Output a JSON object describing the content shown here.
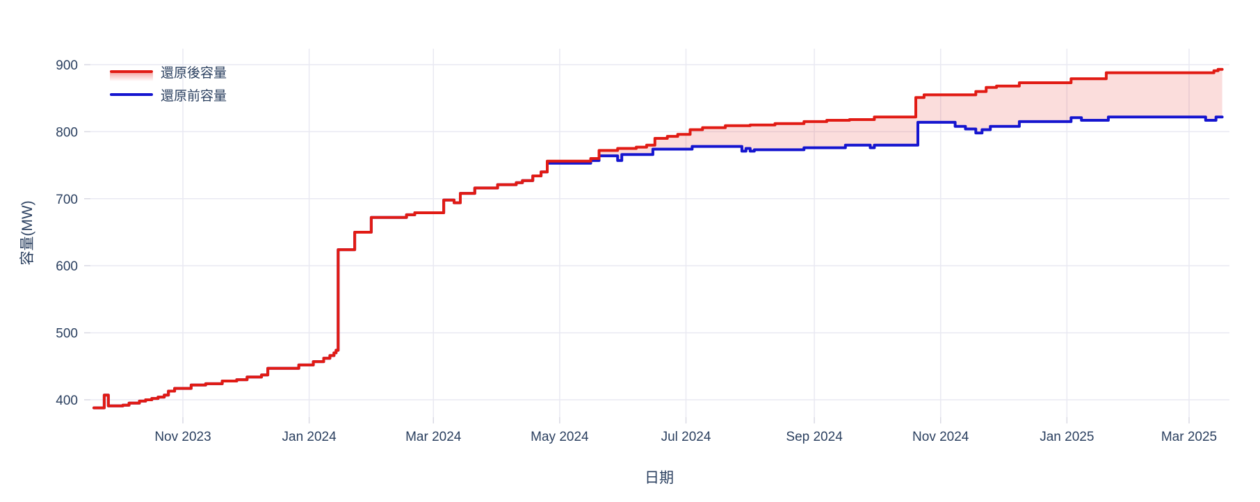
{
  "chart_data": {
    "type": "line",
    "title": "",
    "xlabel": "日期",
    "ylabel": "容量(MW)",
    "grid": true,
    "legend_position": "top-left",
    "line_interpolation": "step-after",
    "background_color": "#ffffff",
    "grid_color": "#e9e9f2",
    "tick_color": "#d9d9e3",
    "text_color": "#2a3f5f",
    "ylim": [
      374,
      924
    ],
    "xlim": [
      "2023-09-16",
      "2025-03-20"
    ],
    "y_ticks": [
      400,
      500,
      600,
      700,
      800,
      900
    ],
    "x_ticks": [
      {
        "date": "2023-11-01",
        "label": "Nov 2023"
      },
      {
        "date": "2024-01-01",
        "label": "Jan 2024"
      },
      {
        "date": "2024-03-01",
        "label": "Mar 2024"
      },
      {
        "date": "2024-05-01",
        "label": "May 2024"
      },
      {
        "date": "2024-07-01",
        "label": "Jul 2024"
      },
      {
        "date": "2024-09-01",
        "label": "Sep 2024"
      },
      {
        "date": "2024-11-01",
        "label": "Nov 2024"
      },
      {
        "date": "2025-01-01",
        "label": "Jan 2025"
      },
      {
        "date": "2025-03-01",
        "label": "Mar 2025"
      }
    ],
    "series": [
      {
        "name": "還原後容量",
        "color": "#e11b14",
        "fill": "tonexty",
        "fill_color": "rgba(225,27,20,0.15)",
        "points": [
          [
            "2023-09-19",
            388
          ],
          [
            "2023-09-23",
            388
          ],
          [
            "2023-09-24",
            407
          ],
          [
            "2023-09-26",
            391
          ],
          [
            "2023-10-03",
            392
          ],
          [
            "2023-10-06",
            395
          ],
          [
            "2023-10-11",
            398
          ],
          [
            "2023-10-14",
            400
          ],
          [
            "2023-10-17",
            402
          ],
          [
            "2023-10-20",
            404
          ],
          [
            "2023-10-23",
            407
          ],
          [
            "2023-10-25",
            413
          ],
          [
            "2023-10-28",
            417
          ],
          [
            "2023-11-05",
            422
          ],
          [
            "2023-11-12",
            424
          ],
          [
            "2023-11-20",
            428
          ],
          [
            "2023-11-27",
            430
          ],
          [
            "2023-12-02",
            434
          ],
          [
            "2023-12-09",
            437
          ],
          [
            "2023-12-12",
            447
          ],
          [
            "2023-12-27",
            452
          ],
          [
            "2024-01-03",
            457
          ],
          [
            "2024-01-08",
            462
          ],
          [
            "2024-01-11",
            466
          ],
          [
            "2024-01-13",
            470
          ],
          [
            "2024-01-14",
            474
          ],
          [
            "2024-01-15",
            624
          ],
          [
            "2024-01-23",
            650
          ],
          [
            "2024-01-31",
            672
          ],
          [
            "2024-02-17",
            676
          ],
          [
            "2024-02-21",
            679
          ],
          [
            "2024-03-06",
            698
          ],
          [
            "2024-03-11",
            694
          ],
          [
            "2024-03-14",
            708
          ],
          [
            "2024-03-21",
            716
          ],
          [
            "2024-04-01",
            721
          ],
          [
            "2024-04-10",
            724
          ],
          [
            "2024-04-13",
            727
          ],
          [
            "2024-04-18",
            734
          ],
          [
            "2024-04-22",
            740
          ],
          [
            "2024-04-25",
            756
          ],
          [
            "2024-05-16",
            760
          ],
          [
            "2024-05-20",
            772
          ],
          [
            "2024-05-29",
            775
          ],
          [
            "2024-06-07",
            777
          ],
          [
            "2024-06-12",
            780
          ],
          [
            "2024-06-16",
            790
          ],
          [
            "2024-06-22",
            793
          ],
          [
            "2024-06-27",
            796
          ],
          [
            "2024-07-03",
            803
          ],
          [
            "2024-07-09",
            806
          ],
          [
            "2024-07-20",
            809
          ],
          [
            "2024-08-01",
            810
          ],
          [
            "2024-08-13",
            812
          ],
          [
            "2024-08-27",
            815
          ],
          [
            "2024-09-07",
            817
          ],
          [
            "2024-09-18",
            818
          ],
          [
            "2024-09-30",
            822
          ],
          [
            "2024-10-20",
            851
          ],
          [
            "2024-10-24",
            855
          ],
          [
            "2024-11-18",
            860
          ],
          [
            "2024-11-23",
            866
          ],
          [
            "2024-11-28",
            868
          ],
          [
            "2024-12-09",
            873
          ],
          [
            "2025-01-03",
            879
          ],
          [
            "2025-01-20",
            888
          ],
          [
            "2025-03-13",
            891
          ],
          [
            "2025-03-15",
            893
          ],
          [
            "2025-03-17",
            893
          ]
        ]
      },
      {
        "name": "還原前容量",
        "color": "#1515cf",
        "fill": "none",
        "points": [
          [
            "2023-09-19",
            388
          ],
          [
            "2023-09-23",
            388
          ],
          [
            "2023-09-24",
            407
          ],
          [
            "2023-09-26",
            391
          ],
          [
            "2023-10-03",
            392
          ],
          [
            "2023-10-06",
            395
          ],
          [
            "2023-10-11",
            398
          ],
          [
            "2023-10-14",
            400
          ],
          [
            "2023-10-17",
            402
          ],
          [
            "2023-10-20",
            404
          ],
          [
            "2023-10-23",
            407
          ],
          [
            "2023-10-25",
            413
          ],
          [
            "2023-10-28",
            417
          ],
          [
            "2023-11-05",
            422
          ],
          [
            "2023-11-12",
            424
          ],
          [
            "2023-11-20",
            428
          ],
          [
            "2023-11-27",
            430
          ],
          [
            "2023-12-02",
            434
          ],
          [
            "2023-12-09",
            437
          ],
          [
            "2023-12-12",
            447
          ],
          [
            "2023-12-27",
            452
          ],
          [
            "2024-01-03",
            457
          ],
          [
            "2024-01-08",
            462
          ],
          [
            "2024-01-11",
            466
          ],
          [
            "2024-01-13",
            470
          ],
          [
            "2024-01-14",
            474
          ],
          [
            "2024-01-15",
            624
          ],
          [
            "2024-01-23",
            650
          ],
          [
            "2024-01-31",
            672
          ],
          [
            "2024-02-17",
            676
          ],
          [
            "2024-02-21",
            679
          ],
          [
            "2024-03-06",
            698
          ],
          [
            "2024-03-11",
            694
          ],
          [
            "2024-03-14",
            708
          ],
          [
            "2024-03-21",
            716
          ],
          [
            "2024-04-01",
            721
          ],
          [
            "2024-04-10",
            724
          ],
          [
            "2024-04-13",
            727
          ],
          [
            "2024-04-18",
            734
          ],
          [
            "2024-04-22",
            740
          ],
          [
            "2024-04-25",
            753
          ],
          [
            "2024-05-16",
            757
          ],
          [
            "2024-05-20",
            764
          ],
          [
            "2024-05-28",
            764
          ],
          [
            "2024-05-29",
            757
          ],
          [
            "2024-05-31",
            766
          ],
          [
            "2024-06-15",
            774
          ],
          [
            "2024-07-04",
            778
          ],
          [
            "2024-07-28",
            771
          ],
          [
            "2024-07-30",
            775
          ],
          [
            "2024-08-01",
            771
          ],
          [
            "2024-08-03",
            773
          ],
          [
            "2024-08-27",
            776
          ],
          [
            "2024-09-16",
            780
          ],
          [
            "2024-09-28",
            776
          ],
          [
            "2024-09-30",
            780
          ],
          [
            "2024-10-21",
            814
          ],
          [
            "2024-11-08",
            808
          ],
          [
            "2024-11-13",
            804
          ],
          [
            "2024-11-18",
            798
          ],
          [
            "2024-11-21",
            803
          ],
          [
            "2024-11-25",
            808
          ],
          [
            "2024-12-09",
            815
          ],
          [
            "2025-01-03",
            821
          ],
          [
            "2025-01-08",
            817
          ],
          [
            "2025-01-21",
            822
          ],
          [
            "2025-03-09",
            817
          ],
          [
            "2025-03-14",
            822
          ],
          [
            "2025-03-17",
            822
          ]
        ]
      }
    ]
  }
}
